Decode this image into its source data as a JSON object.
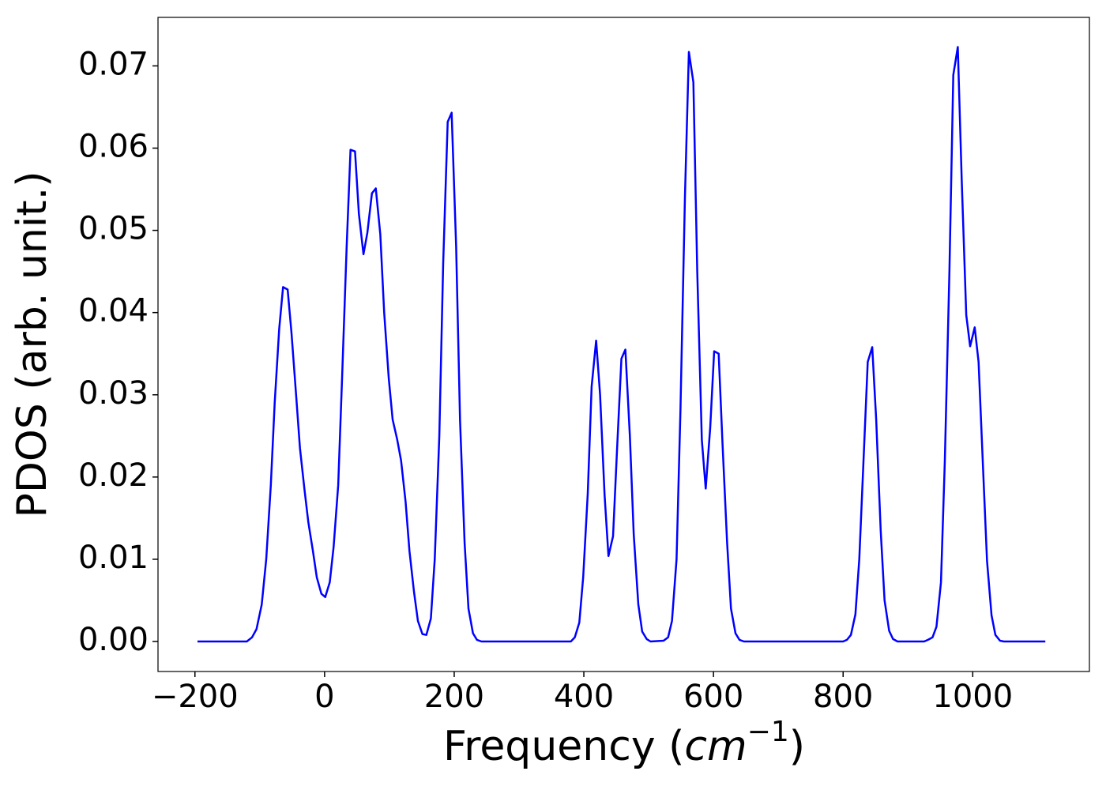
{
  "chart_data": {
    "type": "line",
    "xlabel": [
      "Frequency (",
      "cm",
      "−1",
      ")"
    ],
    "ylabel": "PDOS (arb. unit.)",
    "color": "#0000ff",
    "xlim": [
      -257,
      1180
    ],
    "ylim": [
      -0.00365,
      0.0759
    ],
    "xticks": [
      {
        "value": -200,
        "label": "−200"
      },
      0,
      200,
      400,
      600,
      800,
      1000
    ],
    "yticks": [
      {
        "value": 0,
        "label": "0.00"
      },
      0.01,
      0.02,
      0.03,
      0.04,
      0.05,
      0.06,
      0.07
    ],
    "x": [
      -196,
      -120,
      -112,
      -105,
      -97,
      -90,
      -83,
      -77,
      -70,
      -64,
      -57,
      -51,
      -44,
      -38,
      -31,
      -25,
      -18,
      -12,
      -5,
      1,
      8,
      14,
      21,
      27,
      34,
      40,
      47,
      53,
      60,
      66,
      73,
      79,
      86,
      92,
      99,
      105,
      112,
      118,
      125,
      131,
      138,
      144,
      151,
      157,
      164,
      170,
      177,
      183,
      190,
      196,
      203,
      209,
      216,
      222,
      229,
      235,
      242,
      380,
      386,
      393,
      399,
      406,
      412,
      419,
      425,
      432,
      438,
      445,
      451,
      458,
      464,
      471,
      477,
      484,
      490,
      497,
      503,
      523,
      530,
      536,
      543,
      549,
      556,
      562,
      569,
      575,
      582,
      588,
      595,
      601,
      608,
      614,
      621,
      627,
      634,
      640,
      647,
      800,
      806,
      812,
      819,
      825,
      832,
      838,
      845,
      851,
      858,
      864,
      871,
      877,
      884,
      925,
      931,
      938,
      944,
      951,
      957,
      964,
      970,
      977,
      983,
      990,
      996,
      1003,
      1009,
      1016,
      1022,
      1029,
      1035,
      1042,
      1048,
      1112
    ],
    "values": [
      0,
      0,
      0.0005,
      0.0015,
      0.0045,
      0.01,
      0.019,
      0.029,
      0.038,
      0.0431,
      0.0428,
      0.0375,
      0.03,
      0.0235,
      0.0185,
      0.0145,
      0.011,
      0.0078,
      0.0058,
      0.0054,
      0.0072,
      0.0115,
      0.019,
      0.032,
      0.048,
      0.0598,
      0.0596,
      0.052,
      0.0471,
      0.0497,
      0.0545,
      0.0551,
      0.0495,
      0.04,
      0.032,
      0.027,
      0.0246,
      0.022,
      0.017,
      0.011,
      0.006,
      0.0025,
      0.0009,
      0.0008,
      0.0028,
      0.01,
      0.025,
      0.046,
      0.0632,
      0.0643,
      0.048,
      0.027,
      0.012,
      0.004,
      0.001,
      0.0002,
      0,
      0,
      0.0005,
      0.0023,
      0.0078,
      0.018,
      0.031,
      0.0366,
      0.03,
      0.0178,
      0.0104,
      0.0128,
      0.023,
      0.0344,
      0.0355,
      0.025,
      0.013,
      0.0045,
      0.0012,
      0.0003,
      0,
      0.0001,
      0.0005,
      0.0025,
      0.01,
      0.028,
      0.054,
      0.0717,
      0.068,
      0.045,
      0.0245,
      0.0186,
      0.026,
      0.0353,
      0.035,
      0.024,
      0.012,
      0.004,
      0.001,
      0.0002,
      0,
      0,
      0.0002,
      0.0008,
      0.0033,
      0.01,
      0.023,
      0.034,
      0.0358,
      0.027,
      0.0135,
      0.005,
      0.0013,
      0.0003,
      0,
      0,
      0.0002,
      0.0005,
      0.0018,
      0.0072,
      0.022,
      0.045,
      0.0689,
      0.0723,
      0.056,
      0.0397,
      0.0359,
      0.0382,
      0.034,
      0.021,
      0.0098,
      0.0032,
      0.0008,
      0.0001,
      0,
      0
    ]
  }
}
